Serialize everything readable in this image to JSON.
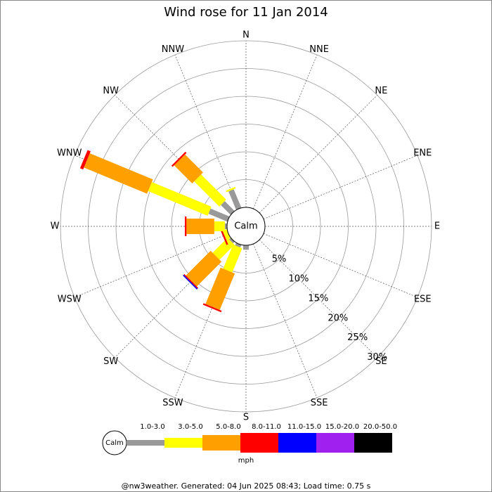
{
  "chart_data": {
    "type": "windrose",
    "title": "Wind rose for 11 Jan 2014",
    "calm_label": "Calm",
    "directions": [
      "N",
      "NNE",
      "NE",
      "ENE",
      "E",
      "ESE",
      "SE",
      "SSE",
      "S",
      "SSW",
      "SW",
      "WSW",
      "W",
      "WNW",
      "NW",
      "NNW"
    ],
    "rlim": [
      0,
      30
    ],
    "rticks": [
      {
        "value": 5,
        "label": "5%"
      },
      {
        "value": 10,
        "label": "10%"
      },
      {
        "value": 15,
        "label": "15%"
      },
      {
        "value": 20,
        "label": "20%"
      },
      {
        "value": 25,
        "label": "25%"
      },
      {
        "value": 30,
        "label": "30%"
      }
    ],
    "series": [
      {
        "name": "1.0-3.0",
        "color": "#999999",
        "values": [
          0,
          0,
          0,
          0,
          0,
          0,
          0,
          0,
          0.8,
          0.5,
          0.4,
          0,
          0.4,
          3.7,
          2.5,
          3.6
        ]
      },
      {
        "name": "3.0-5.0",
        "color": "#ffff00",
        "values": [
          0,
          0,
          0,
          0,
          0,
          0,
          0,
          0,
          0,
          4.7,
          3.8,
          0.8,
          1.9,
          11.6,
          6.4,
          0.3
        ]
      },
      {
        "name": "5.0-8.0",
        "color": "#ffa000",
        "values": [
          0,
          0,
          0,
          0,
          0,
          0,
          0,
          0,
          0,
          7.1,
          6.3,
          0,
          5,
          12.3,
          4.6,
          0
        ]
      },
      {
        "name": "8.0-11.0",
        "color": "#ff0000",
        "values": [
          0,
          0,
          0,
          0,
          0,
          0,
          0,
          0,
          0,
          0.3,
          0.2,
          0.3,
          0.3,
          0.6,
          0.3,
          0
        ]
      },
      {
        "name": "11.0-15.0",
        "color": "#0000ff",
        "values": [
          0,
          0,
          0,
          0,
          0,
          0,
          0,
          0,
          0,
          0,
          0.2,
          0,
          0,
          0,
          0,
          0
        ]
      },
      {
        "name": "15.0-20.0",
        "color": "#a020f0",
        "values": [
          0,
          0,
          0,
          0,
          0,
          0,
          0,
          0,
          0,
          0,
          0,
          0,
          0,
          0,
          0,
          0
        ]
      },
      {
        "name": "20.0-50.0",
        "color": "#000000",
        "values": [
          0,
          0,
          0,
          0,
          0,
          0,
          0,
          0,
          0,
          0,
          0,
          0,
          0,
          0,
          0,
          0
        ]
      }
    ],
    "legend_unit": "mph",
    "footer": "@nw3weather. Generated: 04 Jun 2025 08:43; Load time: 0.75 s"
  }
}
